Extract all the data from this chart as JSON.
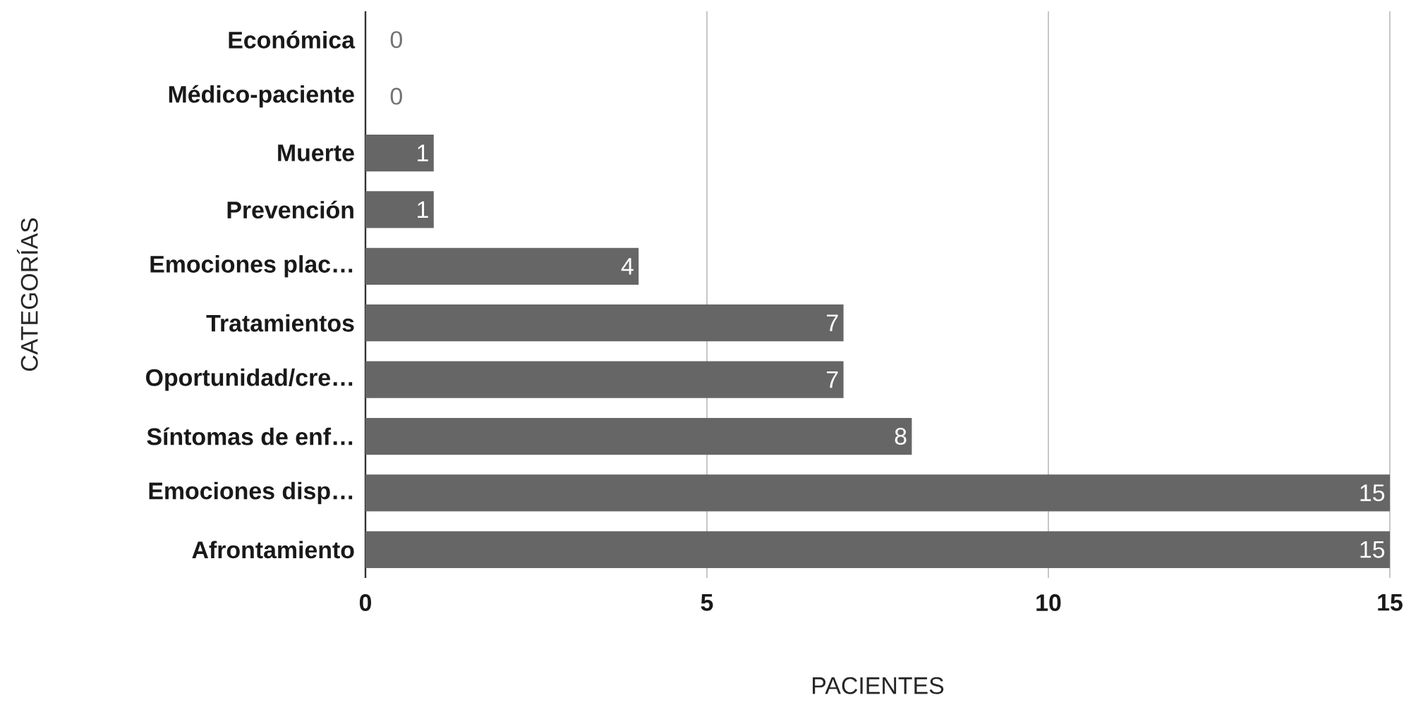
{
  "chart_data": {
    "type": "bar",
    "orientation": "horizontal",
    "xlabel": "PACIENTES",
    "ylabel": "CATEGORÍAS",
    "categories": [
      "Económica",
      "Médico-paciente",
      "Muerte",
      "Prevención",
      "Emociones plac…",
      "Tratamientos",
      "Oportunidad/cre…",
      "Síntomas de enf…",
      "Emociones disp…",
      "Afrontamiento"
    ],
    "values": [
      0,
      0,
      1,
      1,
      4,
      7,
      7,
      8,
      15,
      15
    ],
    "color": "#666666",
    "xlim": [
      0,
      15
    ],
    "xticks": [
      0,
      5,
      10,
      15
    ],
    "grid": "x",
    "data_labels": true
  }
}
